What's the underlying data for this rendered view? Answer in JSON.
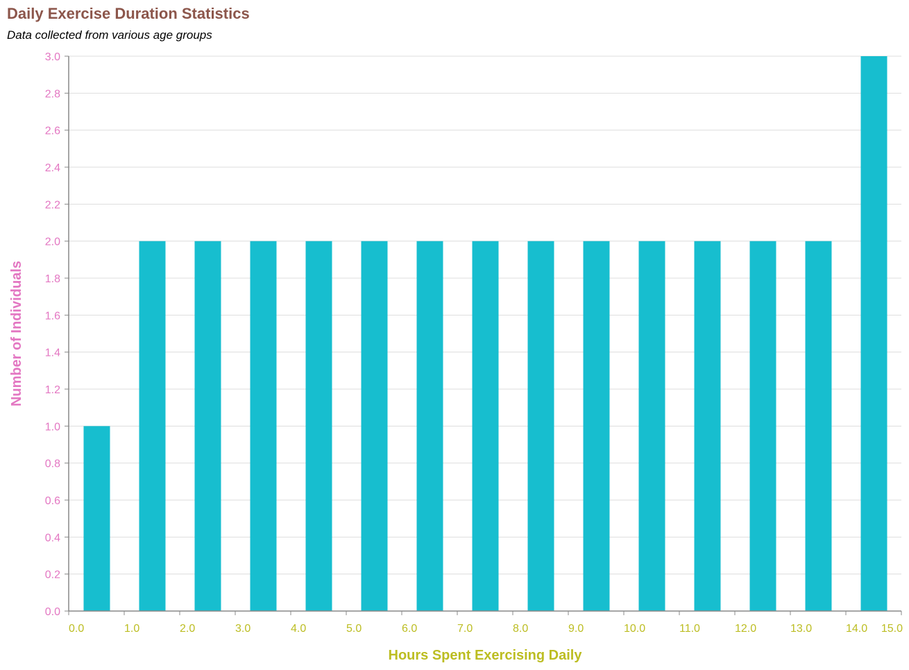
{
  "title": "Daily Exercise Duration Statistics",
  "subtitle": "Data collected from various age groups",
  "chart_data": {
    "type": "bar",
    "title": "Daily Exercise Duration Statistics",
    "subtitle": "Data collected from various age groups",
    "xlabel": "Hours Spent Exercising Daily",
    "ylabel": "Number of Individuals",
    "bin_width": 1,
    "bins": [
      {
        "start": 0,
        "end": 1,
        "count": 1
      },
      {
        "start": 1,
        "end": 2,
        "count": 2
      },
      {
        "start": 2,
        "end": 3,
        "count": 2
      },
      {
        "start": 3,
        "end": 4,
        "count": 2
      },
      {
        "start": 4,
        "end": 5,
        "count": 2
      },
      {
        "start": 5,
        "end": 6,
        "count": 2
      },
      {
        "start": 6,
        "end": 7,
        "count": 2
      },
      {
        "start": 7,
        "end": 8,
        "count": 2
      },
      {
        "start": 8,
        "end": 9,
        "count": 2
      },
      {
        "start": 9,
        "end": 10,
        "count": 2
      },
      {
        "start": 10,
        "end": 11,
        "count": 2
      },
      {
        "start": 11,
        "end": 12,
        "count": 2
      },
      {
        "start": 12,
        "end": 13,
        "count": 2
      },
      {
        "start": 13,
        "end": 14,
        "count": 2
      },
      {
        "start": 14,
        "end": 15,
        "count": 3
      }
    ],
    "xlim": [
      0,
      15
    ],
    "ylim": [
      0,
      3
    ],
    "x_ticks": [
      "0.0",
      "1.0",
      "2.0",
      "3.0",
      "4.0",
      "5.0",
      "6.0",
      "7.0",
      "8.0",
      "9.0",
      "10.0",
      "11.0",
      "12.0",
      "13.0",
      "14.0",
      "15.0"
    ],
    "y_ticks": [
      "0.0",
      "0.2",
      "0.4",
      "0.6",
      "0.8",
      "1.0",
      "1.2",
      "1.4",
      "1.6",
      "1.8",
      "2.0",
      "2.2",
      "2.4",
      "2.6",
      "2.8",
      "3.0"
    ],
    "grid": "horizontal",
    "colors": {
      "bar": "#17becf",
      "title": "#8c564b",
      "y_axis": "#e377c2",
      "x_axis": "#bcbd22",
      "grid": "#dddddd",
      "axis_line": "#888888"
    }
  }
}
